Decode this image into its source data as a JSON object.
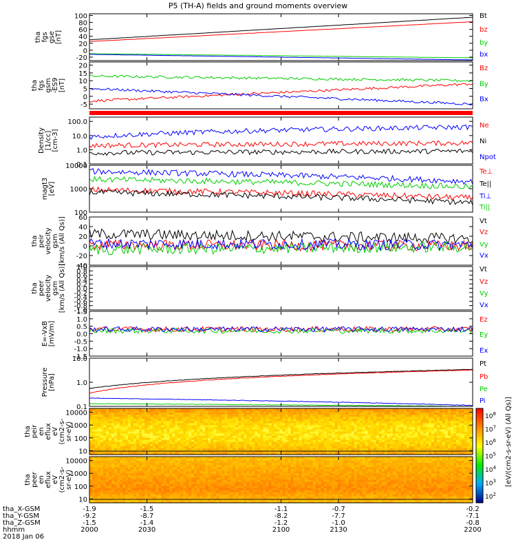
{
  "title": "P5 (TH-A) fields and ground moments overview",
  "colors": {
    "black": "#000000",
    "red": "#ff0000",
    "green": "#00cc00",
    "blue": "#0000ff",
    "orange": "#ff6600"
  },
  "chart_data": [
    {
      "type": "line",
      "panel_label": [
        "tha",
        "fgs",
        "gse",
        "[nT]"
      ],
      "ylim": [
        -30,
        105
      ],
      "yticks": [
        100,
        80,
        60,
        40,
        20,
        0,
        -20
      ],
      "series": [
        {
          "name": "Bt",
          "color": "#000000",
          "x": [
            2000,
            2200
          ],
          "y": [
            30,
            95
          ]
        },
        {
          "name": "bz",
          "color": "#ff0000",
          "x": [
            2000,
            2200
          ],
          "y": [
            25,
            82
          ]
        },
        {
          "name": "by",
          "color": "#00cc00",
          "x": [
            2000,
            2200
          ],
          "y": [
            -10,
            -22
          ]
        },
        {
          "name": "bx",
          "color": "#0000ff",
          "x": [
            2000,
            2200
          ],
          "y": [
            -12,
            -28
          ]
        }
      ]
    },
    {
      "type": "line",
      "panel_label": [
        "tha",
        "fgs",
        "gsm",
        "-ES9",
        "[nT]"
      ],
      "ylim": [
        -8,
        22
      ],
      "yticks": [
        20,
        15,
        10,
        5,
        0,
        -5
      ],
      "series": [
        {
          "name": "Bz",
          "color": "#ff0000",
          "x": [
            2000,
            2200
          ],
          "y": [
            -3,
            8
          ]
        },
        {
          "name": "By",
          "color": "#00cc00",
          "x": [
            2000,
            2200
          ],
          "y": [
            13,
            10
          ]
        },
        {
          "name": "Bx",
          "color": "#0000ff",
          "x": [
            2000,
            2200
          ],
          "y": [
            5,
            -5
          ]
        }
      ]
    },
    {
      "type": "line",
      "panel_label": [
        "Density",
        "[1/cc]",
        "[cm-3]"
      ],
      "yscale": "log",
      "ylim": [
        0.1,
        200
      ],
      "yticks": [
        100.0,
        10.0,
        1.0,
        0.1
      ],
      "ytick_labels": [
        "100.0",
        "10.0",
        "1.0",
        "0.1"
      ],
      "series": [
        {
          "name": "Ne",
          "color": "#ff0000",
          "x": [
            2000,
            2200
          ],
          "y": [
            2,
            3
          ]
        },
        {
          "name": "Ni",
          "color": "#000000",
          "x": [
            2000,
            2200
          ],
          "y": [
            0.6,
            0.8
          ]
        },
        {
          "name": "Npot",
          "color": "#0000ff",
          "x": [
            2000,
            2200
          ],
          "y": [
            8,
            40
          ]
        }
      ]
    },
    {
      "type": "line",
      "panel_label": [
        "magt3",
        "[eV]"
      ],
      "yscale": "log",
      "ylim": [
        100,
        10000
      ],
      "yticks": [
        10000,
        1000,
        100
      ],
      "series": [
        {
          "name": "Te⊥",
          "color": "#ff0000",
          "x": [
            2000,
            2200
          ],
          "y": [
            900,
            400
          ]
        },
        {
          "name": "Te||",
          "color": "#000000",
          "x": [
            2000,
            2200
          ],
          "y": [
            700,
            250
          ]
        },
        {
          "name": "Ti⊥",
          "color": "#0000ff",
          "x": [
            2000,
            2200
          ],
          "y": [
            5500,
            2000
          ]
        },
        {
          "name": "Ti||",
          "color": "#00cc00",
          "x": [
            2000,
            2200
          ],
          "y": [
            2500,
            1200
          ]
        }
      ]
    },
    {
      "type": "line",
      "panel_label": [
        "tha",
        "peir",
        "velocity",
        "gsm",
        "[km/s (All Qs)]"
      ],
      "ylim": [
        -40,
        60
      ],
      "yticks": [
        60,
        40,
        20,
        0,
        -20,
        -40
      ],
      "series": [
        {
          "name": "Vt",
          "color": "#000000",
          "x": [
            2000,
            2200
          ],
          "y": [
            25,
            15
          ]
        },
        {
          "name": "Vz",
          "color": "#ff0000",
          "x": [
            2000,
            2200
          ],
          "y": [
            2,
            0
          ]
        },
        {
          "name": "Vy",
          "color": "#00cc00",
          "x": [
            2000,
            2200
          ],
          "y": [
            -8,
            -2
          ]
        },
        {
          "name": "Vx",
          "color": "#0000ff",
          "x": [
            2000,
            2200
          ],
          "y": [
            5,
            2
          ]
        }
      ]
    },
    {
      "type": "line",
      "panel_label": [
        "tha",
        "peer",
        "velocity",
        "gsm",
        "[km/s (All Qs)]"
      ],
      "ylim": [
        -1.0,
        1.0
      ],
      "yticks": [
        1.0,
        0.8,
        0.6,
        0.4,
        0.2,
        0.0,
        -0.2,
        -0.4,
        -0.6,
        -0.8,
        -1.0
      ],
      "ytick_labels": [
        "1.0",
        "0.8",
        "0.6",
        "0.4",
        "0.2",
        "0.0",
        "-0.2",
        "-0.4",
        "-0.6",
        "-0.8",
        "-1.0"
      ],
      "series": [
        {
          "name": "Vt",
          "color": "#000000",
          "x": [],
          "y": []
        },
        {
          "name": "Vz",
          "color": "#ff0000",
          "x": [],
          "y": []
        },
        {
          "name": "Vy",
          "color": "#00cc00",
          "x": [],
          "y": []
        },
        {
          "name": "Vx",
          "color": "#0000ff",
          "x": [],
          "y": []
        }
      ]
    },
    {
      "type": "line",
      "panel_label": [
        "E=-VxB",
        "[mV/m]"
      ],
      "ylim": [
        -1.5,
        1.5
      ],
      "yticks": [
        1.5,
        1.0,
        0.5,
        0.0,
        -0.5,
        -1.0,
        -1.5
      ],
      "ytick_labels": [
        "1.5",
        "1.0",
        "0.5",
        "0.0",
        "-0.5",
        "-1.0",
        "-1.5"
      ],
      "series": [
        {
          "name": "Ez",
          "color": "#ff0000",
          "x": [
            2000,
            2200
          ],
          "y": [
            0.3,
            0.3
          ]
        },
        {
          "name": "Ey",
          "color": "#00cc00",
          "x": [
            2000,
            2200
          ],
          "y": [
            0.2,
            0.2
          ]
        },
        {
          "name": "Ex",
          "color": "#0000ff",
          "x": [
            2000,
            2200
          ],
          "y": [
            0.3,
            0.3
          ]
        }
      ]
    },
    {
      "type": "line",
      "panel_label": [
        "Pressure",
        "[nPa]"
      ],
      "yscale": "log",
      "ylim": [
        0.1,
        10
      ],
      "yticks": [
        10.0,
        1.0,
        0.1
      ],
      "ytick_labels": [
        "10.0",
        "1.0",
        "0.1"
      ],
      "series": [
        {
          "name": "Pt",
          "color": "#000000",
          "x": [
            2000,
            2200
          ],
          "y": [
            0.55,
            3.4
          ]
        },
        {
          "name": "Pb",
          "color": "#ff0000",
          "x": [
            2000,
            2200
          ],
          "y": [
            0.35,
            3.2
          ]
        },
        {
          "name": "Pe",
          "color": "#00cc00",
          "x": [
            2000,
            2200
          ],
          "y": [
            0.13,
            0.1
          ]
        },
        {
          "name": "Pi",
          "color": "#0000ff",
          "x": [
            2000,
            2200
          ],
          "y": [
            0.22,
            0.11
          ]
        }
      ]
    },
    {
      "type": "heatmap",
      "panel_label": [
        "tha",
        "peir",
        "en",
        "eflux",
        "eV",
        "(cm2-s-",
        "sr-eV)"
      ],
      "yscale": "log",
      "ylim": [
        5,
        20000
      ],
      "yticks": [
        10000,
        1000,
        100,
        10
      ]
    },
    {
      "type": "heatmap",
      "panel_label": [
        "tha",
        "peer",
        "en",
        "eflux",
        "eV",
        "(cm2-s-",
        "sr-eV)"
      ],
      "yscale": "log",
      "ylim": [
        5,
        20000
      ],
      "yticks": [
        10000,
        1000,
        100,
        10
      ]
    }
  ],
  "colorbar": {
    "label": "[eV/(cm2-s-sr-eV) (All Qs)]",
    "ticks": [
      "10^8",
      "10^7",
      "10^6",
      "10^5",
      "10^4",
      "10^3",
      "10^2"
    ]
  },
  "x_axis": {
    "xlim": [
      2000,
      2200
    ],
    "row_labels": [
      "tha_X-GSM",
      "tha_Y-GSM",
      "tha_Z-GSM",
      "hhmm",
      "2018 Jan 06"
    ],
    "ticks": [
      {
        "x": 2000,
        "values": [
          "-1.9",
          "-9.2",
          "-1.5",
          "2000"
        ]
      },
      {
        "x": 2030,
        "values": [
          "-1.5",
          "-8.7",
          "-1.4",
          "2030"
        ]
      },
      {
        "x": 2100,
        "values": [
          "-1.1",
          "-8.2",
          "-1.2",
          "2100"
        ]
      },
      {
        "x": 2130,
        "values": [
          "-0.7",
          "-7.7",
          "-1.0",
          "2130"
        ]
      },
      {
        "x": 2200,
        "values": [
          "-0.2",
          "-7.1",
          "-0.8",
          "2200"
        ]
      }
    ]
  }
}
